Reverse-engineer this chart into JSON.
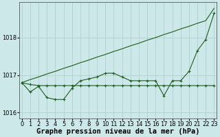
{
  "xlabel": "Graphe pression niveau de la mer (hPa)",
  "background_color": "#cce8e8",
  "grid_color": "#aacccc",
  "line_color": "#1a5c1a",
  "x_values": [
    0,
    1,
    2,
    3,
    4,
    5,
    6,
    7,
    8,
    9,
    10,
    11,
    12,
    13,
    14,
    15,
    16,
    17,
    18,
    19,
    20,
    21,
    22,
    23
  ],
  "series_zigzag": [
    1016.8,
    1016.55,
    1016.7,
    1016.4,
    1016.35,
    1016.35,
    1016.65,
    1016.85,
    1016.9,
    1016.95,
    1017.05,
    1017.05,
    1016.95,
    1016.85,
    1016.85,
    1016.85,
    1016.85,
    1016.45,
    1016.85,
    1016.85,
    1017.1,
    1017.65,
    1017.95,
    1018.65
  ],
  "series_flat": [
    1016.8,
    1016.75,
    1016.72,
    1016.72,
    1016.72,
    1016.72,
    1016.72,
    1016.72,
    1016.72,
    1016.72,
    1016.72,
    1016.72,
    1016.72,
    1016.72,
    1016.72,
    1016.72,
    1016.72,
    1016.72,
    1016.72,
    1016.72,
    1016.72,
    1016.72,
    1016.72,
    1016.72
  ],
  "series_diagonal": [
    1016.8,
    1016.88,
    1016.95,
    1017.03,
    1017.1,
    1017.18,
    1017.25,
    1017.33,
    1017.4,
    1017.48,
    1017.55,
    1017.63,
    1017.7,
    1017.78,
    1017.85,
    1017.93,
    1018.0,
    1018.08,
    1018.15,
    1018.23,
    1018.3,
    1018.38,
    1018.45,
    1018.78
  ],
  "ylim": [
    1015.85,
    1018.95
  ],
  "yticks": [
    1016,
    1017,
    1018
  ],
  "xticks": [
    0,
    1,
    2,
    3,
    4,
    5,
    6,
    7,
    8,
    9,
    10,
    11,
    12,
    13,
    14,
    15,
    16,
    17,
    18,
    19,
    20,
    21,
    22,
    23
  ],
  "marker": "+",
  "markersize": 3.5,
  "linewidth": 0.8,
  "xlabel_fontsize": 7.5,
  "tick_fontsize": 6
}
